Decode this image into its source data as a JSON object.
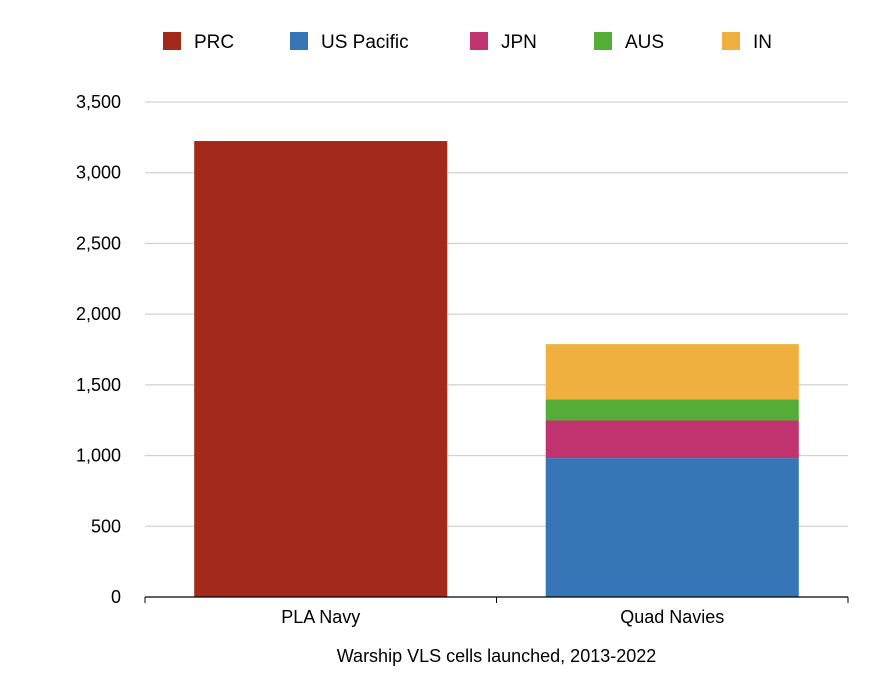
{
  "chart_data": {
    "type": "bar",
    "stacked": true,
    "categories": [
      "PLA Navy",
      "Quad Navies"
    ],
    "series": [
      {
        "name": "PRC",
        "color": "#a3291a",
        "values": [
          3224,
          0
        ]
      },
      {
        "name": "US Pacific",
        "color": "#3675b6",
        "values": [
          0,
          982
        ]
      },
      {
        "name": "JPN",
        "color": "#c1336f",
        "values": [
          0,
          266
        ]
      },
      {
        "name": "AUS",
        "color": "#55ad37",
        "values": [
          0,
          150
        ]
      },
      {
        "name": "IN",
        "color": "#f0b040",
        "values": [
          0,
          390
        ]
      }
    ],
    "xlabel": "Warship VLS cells launched, 2013-2022",
    "ylabel": "",
    "ylim": [
      0,
      3500
    ],
    "yticks": [
      0,
      500,
      1000,
      1500,
      2000,
      2500,
      3000,
      3500
    ],
    "ytick_labels": [
      "0",
      "500",
      "1,000",
      "1,500",
      "2,000",
      "2,500",
      "3,000",
      "3,500"
    ],
    "grid": true,
    "legend": "top"
  }
}
